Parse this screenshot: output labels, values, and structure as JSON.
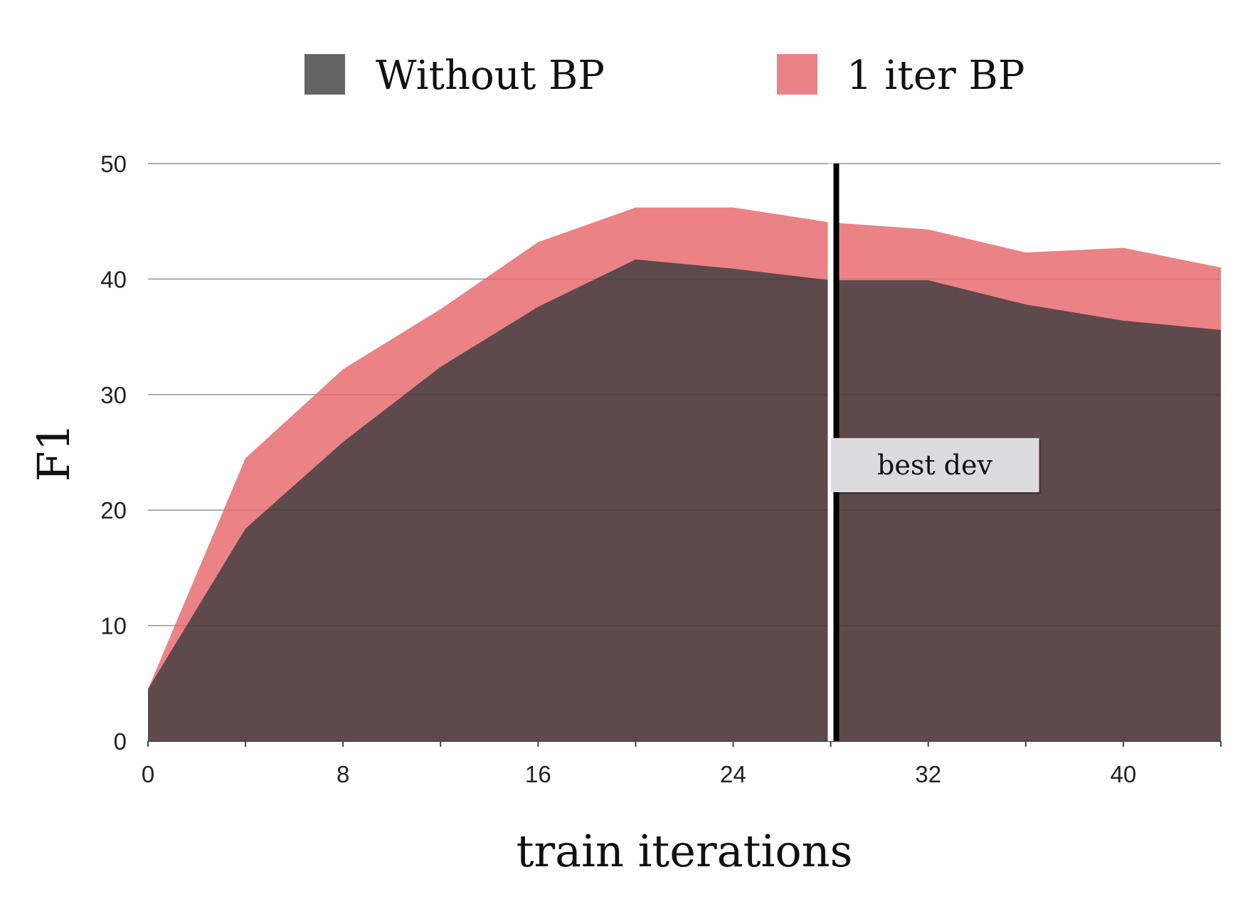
{
  "chart_data": {
    "type": "area",
    "xlabel": "train iterations",
    "ylabel": "F1",
    "xlim": [
      0,
      44
    ],
    "ylim": [
      0,
      50
    ],
    "xticks": [
      0,
      8,
      16,
      24,
      32,
      40
    ],
    "yticks": [
      0,
      10,
      20,
      30,
      40,
      50
    ],
    "grid": true,
    "legend_position": "top",
    "x": [
      0,
      4,
      8,
      12,
      16,
      20,
      24,
      28,
      32,
      36,
      40,
      44
    ],
    "series": [
      {
        "name": "Without BP",
        "color": "#5e4a4c",
        "legend_color": "#646464",
        "values": [
          4.5,
          18.4,
          25.9,
          32.4,
          37.6,
          41.7,
          40.9,
          39.9,
          39.9,
          37.8,
          36.4,
          35.6
        ]
      },
      {
        "name": "1 iter BP",
        "color": "#eb8286",
        "legend_color": "#eb8286",
        "values": [
          4.5,
          24.5,
          32.2,
          37.4,
          43.2,
          46.2,
          46.2,
          44.9,
          44.3,
          42.3,
          42.7,
          41.0
        ]
      }
    ],
    "annotations": [
      {
        "type": "vline",
        "x": 28.2,
        "label": "best dev"
      }
    ]
  }
}
